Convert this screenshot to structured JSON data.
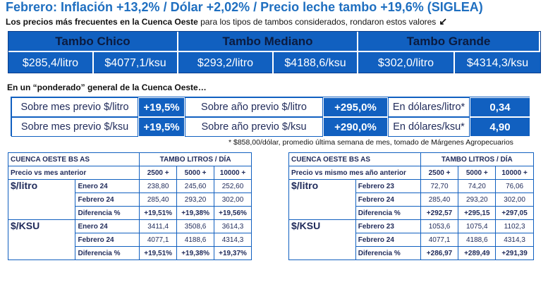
{
  "header": {
    "title": "Febrero: Inflación +13,2% / Dólar +2,02% / Precio leche tambo +19,6% (SIGLEA)",
    "subtitle_bold": "Los precios más frecuentes en la Cuenca Oeste",
    "subtitle_regular": " para los tipos de tambos considerados, rondaron estos valores",
    "arrow_glyph": "↙"
  },
  "tambos": [
    {
      "name": "Tambo Chico",
      "per_litro": "$285,4/litro",
      "per_ksu": "$4077,1/ksu"
    },
    {
      "name": "Tambo Mediano",
      "per_litro": "$293,2/litro",
      "per_ksu": "$4188,6/ksu"
    },
    {
      "name": "Tambo Grande",
      "per_litro": "$302,0/litro",
      "per_ksu": "$4314,3/ksu"
    }
  ],
  "ponderado": {
    "heading": "En un “ponderado” general de la Cuenca Oeste…",
    "rows": [
      {
        "l1": "Sobre mes previo $/litro",
        "v1": "+19,5%",
        "l2": "Sobre año previo $/litro",
        "v2": "+295,0%",
        "l3": "En dólares/litro*",
        "v3": "0,34"
      },
      {
        "l1": "Sobre mes previo $/ksu",
        "v1": "+19,5%",
        "l2": "Sobre año previo $/ksu",
        "v2": "+290,0%",
        "l3": "En dólares/ksu*",
        "v3": "4,90"
      }
    ],
    "footnote": "* $858,00/dólar, promedio última semana de mes, tomado de Márgenes Agropecuarios"
  },
  "left_table": {
    "region": "CUENCA OESTE BS AS",
    "group_header": "TAMBO LITROS / DÍA",
    "comparison": "Precio vs mes anterior",
    "cols": [
      "2500 +",
      "5000 +",
      "10000 +"
    ],
    "sections": [
      {
        "unit": "$/litro",
        "rows": [
          {
            "label": "Enero 24",
            "vals": [
              "238,80",
              "245,60",
              "252,60"
            ]
          },
          {
            "label": "Febrero 24",
            "vals": [
              "285,40",
              "293,20",
              "302,00"
            ]
          },
          {
            "label": "Diferencia %",
            "vals": [
              "+19,51%",
              "+19,38%",
              "+19,56%"
            ]
          }
        ]
      },
      {
        "unit": "$/KSU",
        "rows": [
          {
            "label": "Enero 24",
            "vals": [
              "3411,4",
              "3508,6",
              "3614,3"
            ]
          },
          {
            "label": "Febrero 24",
            "vals": [
              "4077,1",
              "4188,6",
              "4314,3"
            ]
          },
          {
            "label": "Diferencia %",
            "vals": [
              "+19,51%",
              "+19,38%",
              "+19,37%"
            ]
          }
        ]
      }
    ]
  },
  "right_table": {
    "region": "CUENCA OESTE BS AS",
    "group_header": "TAMBO LITROS / DÍA",
    "comparison": "Precio vs mismo mes año anterior",
    "cols": [
      "2500 +",
      "5000 +",
      "10000 +"
    ],
    "sections": [
      {
        "unit": "$/litro",
        "rows": [
          {
            "label": "Febrero 23",
            "vals": [
              "72,70",
              "74,20",
              "76,06"
            ]
          },
          {
            "label": "Febrero 24",
            "vals": [
              "285,40",
              "293,20",
              "302,00"
            ]
          },
          {
            "label": "Diferencia %",
            "vals": [
              "+292,57",
              "+295,15",
              "+297,05"
            ]
          }
        ]
      },
      {
        "unit": "$/KSU",
        "rows": [
          {
            "label": "Febrero 23",
            "vals": [
              "1053,6",
              "1075,4",
              "1102,3"
            ]
          },
          {
            "label": "Febrero 24",
            "vals": [
              "4077,1",
              "4188,6",
              "4314,3"
            ]
          },
          {
            "label": "Diferencia %",
            "vals": [
              "+286,97",
              "+289,49",
              "+291,39"
            ]
          }
        ]
      }
    ]
  },
  "colors": {
    "accent_blue": "#1160c0",
    "title_blue": "#1f6fc0",
    "text_navy": "#1f2a5a"
  }
}
